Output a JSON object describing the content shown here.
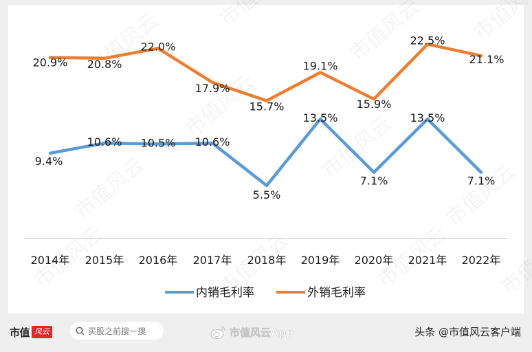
{
  "chart_data": {
    "type": "line",
    "title": "",
    "xlabel": "",
    "ylabel": "",
    "categories": [
      "2014年",
      "2015年",
      "2016年",
      "2017年",
      "2018年",
      "2019年",
      "2020年",
      "2021年",
      "2022年"
    ],
    "series": [
      {
        "name": "内销毛利率",
        "color": "#5b9bd5",
        "values": [
          9.4,
          10.6,
          10.5,
          10.6,
          5.5,
          13.5,
          7.1,
          13.5,
          7.1
        ],
        "labels": [
          "9.4%",
          "10.6%",
          "10.5%",
          "10.6%",
          "5.5%",
          "13.5%",
          "7.1%",
          "13.5%",
          "7.1%"
        ]
      },
      {
        "name": "外销毛利率",
        "color": "#ed7d31",
        "values": [
          20.9,
          20.8,
          22.0,
          17.9,
          15.7,
          19.1,
          15.9,
          22.5,
          21.1
        ],
        "labels": [
          "20.9%",
          "20.8%",
          "22.0%",
          "17.9%",
          "15.7%",
          "19.1%",
          "15.9%",
          "22.5%",
          "21.1%"
        ]
      }
    ],
    "ylim": [
      0,
      25
    ],
    "grid": false,
    "y_axis_visible": false,
    "legend_position": "bottom",
    "data_labels": true
  },
  "watermark": "市值风云",
  "footer": {
    "brand_text": "市值",
    "brand_badge": "风云",
    "search_placeholder": "买股之前搜一搜",
    "weibo_text": "市值风云App",
    "toutiao_text": "头条 @市值风云客户端"
  }
}
